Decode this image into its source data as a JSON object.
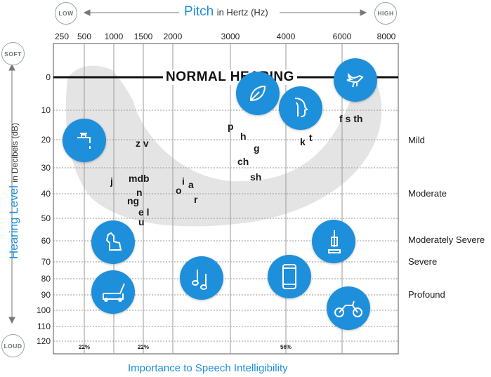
{
  "header": {
    "low": "LOW",
    "high": "HIGH",
    "title": "Pitch",
    "subtitle": "in Hertz (Hz)"
  },
  "left": {
    "soft": "SOFT",
    "loud": "LOUD",
    "title": "Hearing Level",
    "subtitle": "in Decibels (dB)"
  },
  "footer": {
    "title": "Importance to Speech Intelligibility",
    "pct": [
      "22%",
      "22%",
      "56%"
    ]
  },
  "chart_data": {
    "type": "scatter",
    "title": "NORMAL HEARING",
    "x_ticks": [
      "250",
      "500",
      "1000",
      "1500",
      "2000",
      "3000",
      "4000",
      "6000",
      "8000"
    ],
    "y_ticks": [
      "0",
      "10",
      "20",
      "30",
      "40",
      "50",
      "60",
      "70",
      "80",
      "90",
      "100",
      "110",
      "120"
    ],
    "severity": [
      "Mild",
      "Moderate",
      "Moderately Severe",
      "Severe",
      "Profound"
    ],
    "phonemes": [
      {
        "label": "z v",
        "x_hz": 1500,
        "y_db": 22
      },
      {
        "label": "j",
        "x_hz": 1000,
        "y_db": 36
      },
      {
        "label": "mdb",
        "x_hz": 1500,
        "y_db": 35
      },
      {
        "label": "n",
        "x_hz": 1500,
        "y_db": 42
      },
      {
        "label": "ng",
        "x_hz": 1500,
        "y_db": 45
      },
      {
        "label": "e l",
        "x_hz": 1500,
        "y_db": 48
      },
      {
        "label": "u",
        "x_hz": 1500,
        "y_db": 51
      },
      {
        "label": "o",
        "x_hz": 2000,
        "y_db": 40
      },
      {
        "label": "i",
        "x_hz": 2000,
        "y_db": 38
      },
      {
        "label": "a",
        "x_hz": 2000,
        "y_db": 39
      },
      {
        "label": "r",
        "x_hz": 2000,
        "y_db": 44
      },
      {
        "label": "p",
        "x_hz": 3000,
        "y_db": 16
      },
      {
        "label": "h",
        "x_hz": 3000,
        "y_db": 19
      },
      {
        "label": "g",
        "x_hz": 3000,
        "y_db": 23
      },
      {
        "label": "ch",
        "x_hz": 3000,
        "y_db": 28
      },
      {
        "label": "sh",
        "x_hz": 3000,
        "y_db": 34
      },
      {
        "label": "k",
        "x_hz": 4000,
        "y_db": 21
      },
      {
        "label": "t",
        "x_hz": 4000,
        "y_db": 19
      },
      {
        "label": "f s th",
        "x_hz": 6000,
        "y_db": 14
      }
    ],
    "icons": [
      "leaf-icon",
      "whisper-icon",
      "bird-icon",
      "faucet-icon",
      "dog-icon",
      "vacuum-icon",
      "lawnmower-icon",
      "music-notes-icon",
      "phone-icon",
      "motorcycle-icon"
    ]
  },
  "colors": {
    "accent": "#1e8fdb",
    "banana": "#e6e6e6"
  }
}
